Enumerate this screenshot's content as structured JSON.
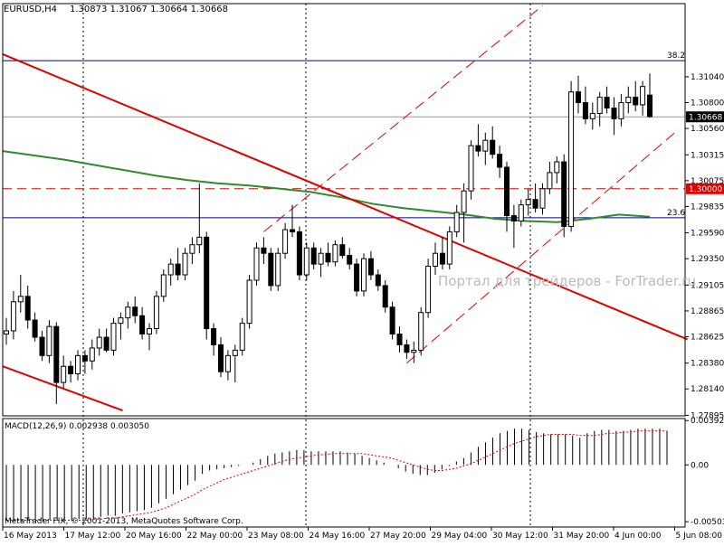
{
  "header": {
    "symbol": "EURUSD,H4",
    "ohlc": "1.30873 1.31067 1.30664 1.30668"
  },
  "macd": {
    "label": "MACD(12,26,9) 0.002938 0.003050"
  },
  "watermark": "Портал для трейдеров - ForTrader.ru",
  "copyright": "MetaTrader FIX, © 2001-2013, MetaQuotes Software Corp.",
  "colors": {
    "background": "#ffffff",
    "frame": "#000000",
    "bull_candle": "#ffffff",
    "bear_candle": "#000000",
    "trendline": "#e00000",
    "moving_average": "#2e8b2e",
    "fib_line": "#000080",
    "macd_signal": "#e00000",
    "watermark": "#bbbbbb"
  },
  "chart_data": [
    {
      "type": "candlestick",
      "pane": "price",
      "ylim": [
        1.2789,
        1.3172
      ],
      "y_ticks": [
        "1.31040",
        "1.30800",
        "1.30560",
        "1.30315",
        "1.30075",
        "1.29835",
        "1.29590",
        "1.29350",
        "1.29105",
        "1.28865",
        "1.28625",
        "1.28380",
        "1.28140",
        "1.27895"
      ],
      "x_ticks": [
        "16 May 2013",
        "17 May 12:00",
        "20 May 16:00",
        "22 May 00:00",
        "23 May 08:00",
        "24 May 16:00",
        "27 May 20:00",
        "29 May 04:00",
        "30 May 12:00",
        "31 May 20:00",
        "4 Jun 00:00",
        "5 Jun 08:00"
      ],
      "current_price": "1.30668",
      "level_label": "1.30000",
      "fib_levels": [
        {
          "label": "38.2",
          "value": 1.3119
        },
        {
          "label": "23.6",
          "value": 1.2973
        }
      ],
      "candles": [
        [
          1.2865,
          1.288,
          1.2855,
          1.2868
        ],
        [
          1.2868,
          1.2905,
          1.286,
          1.2895
        ],
        [
          1.2895,
          1.292,
          1.2885,
          1.29
        ],
        [
          1.29,
          1.291,
          1.287,
          1.2878
        ],
        [
          1.2878,
          1.2885,
          1.2858,
          1.2862
        ],
        [
          1.2862,
          1.2868,
          1.284,
          1.2845
        ],
        [
          1.2845,
          1.2878,
          1.2838,
          1.2872
        ],
        [
          1.2872,
          1.2876,
          1.28,
          1.282
        ],
        [
          1.282,
          1.2845,
          1.2815,
          1.2835
        ],
        [
          1.2835,
          1.284,
          1.282,
          1.2828
        ],
        [
          1.2828,
          1.285,
          1.2822,
          1.2845
        ],
        [
          1.2845,
          1.285,
          1.2828,
          1.284
        ],
        [
          1.284,
          1.286,
          1.2832,
          1.2852
        ],
        [
          1.2852,
          1.287,
          1.2845,
          1.2862
        ],
        [
          1.2862,
          1.287,
          1.2848,
          1.285
        ],
        [
          1.285,
          1.288,
          1.2845,
          1.2875
        ],
        [
          1.2875,
          1.2885,
          1.286,
          1.288
        ],
        [
          1.288,
          1.2895,
          1.287,
          1.289
        ],
        [
          1.289,
          1.29,
          1.2875,
          1.2882
        ],
        [
          1.2882,
          1.289,
          1.286,
          1.2865
        ],
        [
          1.2865,
          1.2875,
          1.285,
          1.287
        ],
        [
          1.287,
          1.2905,
          1.2865,
          1.29
        ],
        [
          1.29,
          1.2925,
          1.2895,
          1.292
        ],
        [
          1.292,
          1.2935,
          1.291,
          1.293
        ],
        [
          1.293,
          1.2945,
          1.2915,
          1.292
        ],
        [
          1.292,
          1.2945,
          1.2915,
          1.294
        ],
        [
          1.294,
          1.2955,
          1.293,
          1.2948
        ],
        [
          1.2948,
          1.3005,
          1.294,
          1.2955
        ],
        [
          1.2955,
          1.296,
          1.286,
          1.287
        ],
        [
          1.287,
          1.2875,
          1.2845,
          1.2855
        ],
        [
          1.2855,
          1.2862,
          1.2825,
          1.283
        ],
        [
          1.283,
          1.285,
          1.2822,
          1.2845
        ],
        [
          1.2845,
          1.2855,
          1.282,
          1.285
        ],
        [
          1.285,
          1.288,
          1.2845,
          1.2875
        ],
        [
          1.2875,
          1.292,
          1.287,
          1.2915
        ],
        [
          1.2915,
          1.295,
          1.291,
          1.2945
        ],
        [
          1.2945,
          1.2955,
          1.293,
          1.294
        ],
        [
          1.294,
          1.2945,
          1.2905,
          1.291
        ],
        [
          1.291,
          1.2945,
          1.2905,
          1.294
        ],
        [
          1.294,
          1.2968,
          1.2935,
          1.2962
        ],
        [
          1.2962,
          1.2985,
          1.2955,
          1.296
        ],
        [
          1.296,
          1.2965,
          1.2915,
          1.292
        ],
        [
          1.292,
          1.295,
          1.2915,
          1.2945
        ],
        [
          1.2945,
          1.295,
          1.2925,
          1.293
        ],
        [
          1.293,
          1.2945,
          1.2918,
          1.294
        ],
        [
          1.294,
          1.295,
          1.2928,
          1.2932
        ],
        [
          1.2932,
          1.2952,
          1.2928,
          1.2948
        ],
        [
          1.2948,
          1.2955,
          1.2935,
          1.2938
        ],
        [
          1.2938,
          1.2945,
          1.2925,
          1.293
        ],
        [
          1.293,
          1.2935,
          1.29,
          1.2905
        ],
        [
          1.2905,
          1.294,
          1.29,
          1.2935
        ],
        [
          1.2935,
          1.2942,
          1.2915,
          1.292
        ],
        [
          1.292,
          1.2925,
          1.2905,
          1.291
        ],
        [
          1.291,
          1.2915,
          1.2885,
          1.289
        ],
        [
          1.289,
          1.2895,
          1.286,
          1.2865
        ],
        [
          1.2865,
          1.2872,
          1.2848,
          1.2855
        ],
        [
          1.2855,
          1.286,
          1.2842,
          1.2848
        ],
        [
          1.2848,
          1.2858,
          1.2838,
          1.285
        ],
        [
          1.285,
          1.289,
          1.2845,
          1.2885
        ],
        [
          1.2885,
          1.2935,
          1.288,
          1.2928
        ],
        [
          1.2928,
          1.295,
          1.292,
          1.294
        ],
        [
          1.294,
          1.2955,
          1.2925,
          1.293
        ],
        [
          1.293,
          1.2965,
          1.2925,
          1.296
        ],
        [
          1.296,
          1.2985,
          1.2955,
          1.2978
        ],
        [
          1.2978,
          1.3005,
          1.295,
          1.2998
        ],
        [
          1.2998,
          1.3045,
          1.299,
          1.304
        ],
        [
          1.304,
          1.306,
          1.303,
          1.3035
        ],
        [
          1.3035,
          1.3052,
          1.3022,
          1.3045
        ],
        [
          1.3045,
          1.3058,
          1.3028,
          1.3032
        ],
        [
          1.3032,
          1.304,
          1.301,
          1.302
        ],
        [
          1.302,
          1.3025,
          1.296,
          1.2975
        ],
        [
          1.2975,
          1.2985,
          1.2945,
          1.297
        ],
        [
          1.297,
          1.299,
          1.2965,
          1.2985
        ],
        [
          1.2985,
          1.3,
          1.2975,
          1.299
        ],
        [
          1.299,
          1.3005,
          1.2978,
          1.2982
        ],
        [
          1.2982,
          1.3005,
          1.2976,
          1.3
        ],
        [
          1.3,
          1.3025,
          1.2995,
          1.3015
        ],
        [
          1.3015,
          1.303,
          1.3005,
          1.3025
        ],
        [
          1.3025,
          1.3032,
          1.2955,
          1.2965
        ],
        [
          1.2965,
          1.31,
          1.296,
          1.309
        ],
        [
          1.309,
          1.3105,
          1.307,
          1.308
        ],
        [
          1.308,
          1.3095,
          1.306,
          1.3065
        ],
        [
          1.3065,
          1.308,
          1.3055,
          1.307
        ],
        [
          1.307,
          1.309,
          1.3058,
          1.3085
        ],
        [
          1.3085,
          1.3095,
          1.307,
          1.3075
        ],
        [
          1.3075,
          1.3085,
          1.305,
          1.3065
        ],
        [
          1.3065,
          1.3088,
          1.3058,
          1.308
        ],
        [
          1.308,
          1.3095,
          1.307,
          1.3085
        ],
        [
          1.3085,
          1.31,
          1.3072,
          1.3078
        ],
        [
          1.3078,
          1.31,
          1.3068,
          1.3095
        ],
        [
          1.3087,
          1.3107,
          1.3066,
          1.3067
        ]
      ],
      "moving_average": [
        1.3035,
        1.3031,
        1.3027,
        1.3022,
        1.3017,
        1.3012,
        1.3008,
        1.3005,
        1.3003,
        1.3,
        1.2997,
        1.2992,
        1.2986,
        1.2982,
        1.2979,
        1.2976,
        1.2972,
        1.297,
        1.2969,
        1.2972,
        1.2976,
        1.2974
      ],
      "trendlines": [
        {
          "x": [
            0,
            94
          ],
          "y": [
            1.3125,
            1.286
          ]
        },
        {
          "x": [
            0,
            15
          ],
          "y": [
            1.2835,
            1.2794
          ]
        }
      ],
      "channel": [
        {
          "x": [
            36,
            75
          ],
          "y": [
            1.296,
            1.317
          ]
        },
        {
          "x": [
            56,
            94
          ],
          "y": [
            1.2838,
            1.3055
          ]
        }
      ]
    },
    {
      "type": "bar+line",
      "pane": "macd",
      "ylim": [
        -0.0055,
        0.0041
      ],
      "y_ticks": [
        "0.003921",
        "0.00",
        "-0.00503"
      ],
      "histogram": [
        -0.0049,
        -0.005,
        -0.005,
        -0.0049,
        -0.0049,
        -0.0049,
        -0.0048,
        -0.0049,
        -0.005,
        -0.0049,
        -0.0048,
        -0.0048,
        -0.0047,
        -0.0046,
        -0.0045,
        -0.0045,
        -0.0043,
        -0.0042,
        -0.0041,
        -0.004,
        -0.0038,
        -0.0034,
        -0.003,
        -0.0026,
        -0.0022,
        -0.0018,
        -0.0014,
        -0.0008,
        -0.0005,
        -0.0004,
        -0.0003,
        -0.0002,
        -0.0001,
        0.0,
        0.0002,
        0.0005,
        0.0008,
        0.001,
        0.0011,
        0.0012,
        0.0013,
        0.0013,
        0.0012,
        0.0012,
        0.0012,
        0.0012,
        0.0012,
        0.0011,
        0.001,
        0.0008,
        0.0006,
        0.0004,
        0.0002,
        0.0,
        -0.0003,
        -0.0006,
        -0.0008,
        -0.0009,
        -0.0009,
        -0.0007,
        -0.0004,
        -0.0001,
        0.0003,
        0.0006,
        0.0011,
        0.0016,
        0.002,
        0.0024,
        0.0028,
        0.003,
        0.0032,
        0.0032,
        0.0031,
        0.0029,
        0.0028,
        0.0027,
        0.0027,
        0.0027,
        0.0026,
        0.0024,
        0.0028,
        0.003,
        0.0031,
        0.0031,
        0.003,
        0.003,
        0.0031,
        0.0032,
        0.0032,
        0.0032,
        0.0032,
        0.003
      ],
      "signal": [
        -0.0049,
        -0.0049,
        -0.0049,
        -0.0049,
        -0.0049,
        -0.0049,
        -0.0049,
        -0.0049,
        -0.0049,
        -0.0049,
        -0.0049,
        -0.0049,
        -0.0048,
        -0.0048,
        -0.0047,
        -0.0047,
        -0.0046,
        -0.0045,
        -0.0044,
        -0.0043,
        -0.0042,
        -0.004,
        -0.0038,
        -0.0035,
        -0.0032,
        -0.0029,
        -0.0026,
        -0.0022,
        -0.0019,
        -0.0016,
        -0.0013,
        -0.0011,
        -0.0009,
        -0.0007,
        -0.0005,
        -0.0003,
        -0.0001,
        0.0001,
        0.0003,
        0.0005,
        0.0006,
        0.0007,
        0.0008,
        0.0009,
        0.0009,
        0.001,
        0.001,
        0.001,
        0.001,
        0.001,
        0.0009,
        0.0008,
        0.0007,
        0.0006,
        0.0004,
        0.0002,
        0.0,
        -0.0002,
        -0.0004,
        -0.0005,
        -0.0005,
        -0.0004,
        -0.0003,
        -0.0001,
        0.0001,
        0.0004,
        0.0007,
        0.001,
        0.0013,
        0.0016,
        0.0019,
        0.0021,
        0.0023,
        0.0025,
        0.0026,
        0.0027,
        0.0027,
        0.0027,
        0.0027,
        0.0026,
        0.0026,
        0.0026,
        0.0027,
        0.0028,
        0.0028,
        0.0029,
        0.0029,
        0.003,
        0.003,
        0.003,
        0.003,
        0.003
      ]
    }
  ]
}
